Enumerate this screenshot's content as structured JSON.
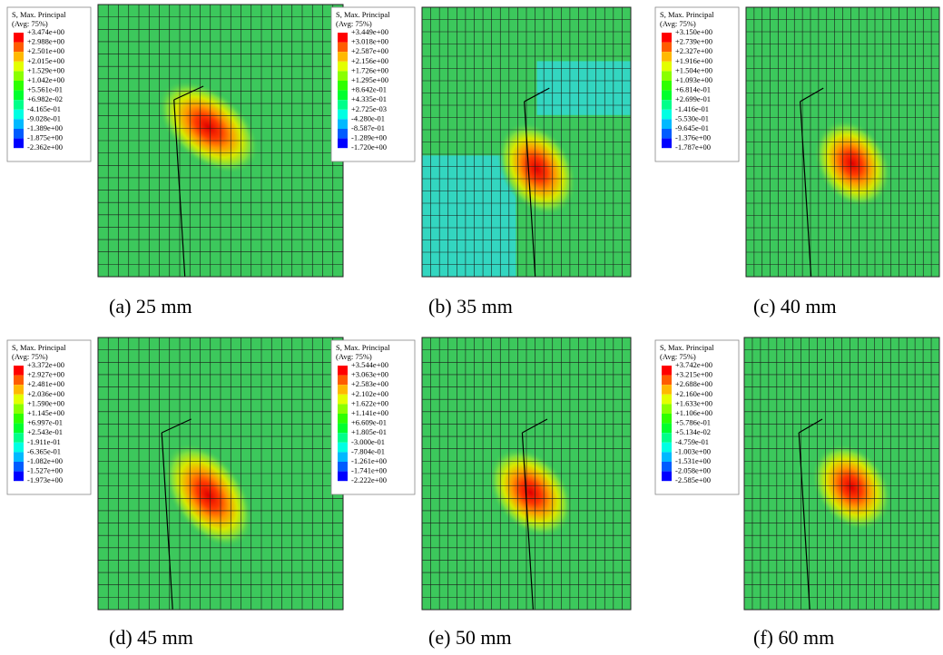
{
  "band_colors": [
    "#ff0000",
    "#ff5c00",
    "#ffb900",
    "#e3ff00",
    "#8aff00",
    "#2eff00",
    "#00ff2e",
    "#00ff8a",
    "#00ffe3",
    "#00b9ff",
    "#005cff",
    "#0000ff"
  ],
  "panels": [
    {
      "legend_title": "S, Max. Principal",
      "legend_subtitle": "(Avg: 75%)",
      "caption": "(a) 25 mm",
      "legend_values": [
        "+3.474e+00",
        "+2.988e+00",
        "+2.501e+00",
        "+2.015e+00",
        "+1.529e+00",
        "+1.042e+00",
        "+5.561e-01",
        "+6.982e-02",
        "-4.165e-01",
        "-9.028e-01",
        "-1.389e+00",
        "-1.875e+00",
        "-2.362e+00"
      ]
    },
    {
      "legend_title": "S, Max. Principal",
      "legend_subtitle": "(Avg: 75%)",
      "caption": "(b) 35 mm",
      "legend_values": [
        "+3.449e+00",
        "+3.018e+00",
        "+2.587e+00",
        "+2.156e+00",
        "+1.726e+00",
        "+1.295e+00",
        "+8.642e-01",
        "+4.335e-01",
        "+2.725e-03",
        "-4.280e-01",
        "-8.587e-01",
        "-1.289e+00",
        "-1.720e+00"
      ]
    },
    {
      "legend_title": "S, Max. Principal",
      "legend_subtitle": "(Avg: 75%)",
      "caption": "(c) 40 mm",
      "legend_values": [
        "+3.150e+00",
        "+2.739e+00",
        "+2.327e+00",
        "+1.916e+00",
        "+1.504e+00",
        "+1.093e+00",
        "+6.814e-01",
        "+2.699e-01",
        "-1.416e-01",
        "-5.530e-01",
        "-9.645e-01",
        "-1.376e+00",
        "-1.787e+00"
      ]
    },
    {
      "legend_title": "S, Max. Principal",
      "legend_subtitle": "(Avg: 75%)",
      "caption": "(d) 45 mm",
      "legend_values": [
        "+3.372e+00",
        "+2.927e+00",
        "+2.481e+00",
        "+2.036e+00",
        "+1.590e+00",
        "+1.145e+00",
        "+6.997e-01",
        "+2.543e-01",
        "-1.911e-01",
        "-6.365e-01",
        "-1.082e+00",
        "-1.527e+00",
        "-1.973e+00"
      ]
    },
    {
      "legend_title": "S, Max. Principal",
      "legend_subtitle": "(Avg: 75%)",
      "caption": "(e) 50 mm",
      "legend_values": [
        "+3.544e+00",
        "+3.063e+00",
        "+2.583e+00",
        "+2.102e+00",
        "+1.622e+00",
        "+1.141e+00",
        "+6.609e-01",
        "+1.805e-01",
        "-3.000e-01",
        "-7.804e-01",
        "-1.261e+00",
        "-1.741e+00",
        "-2.222e+00"
      ]
    },
    {
      "legend_title": "S, Max. Principal",
      "legend_subtitle": "(Avg: 75%)",
      "caption": "(f) 60 mm",
      "legend_values": [
        "+3.742e+00",
        "+3.215e+00",
        "+2.688e+00",
        "+2.160e+00",
        "+1.633e+00",
        "+1.106e+00",
        "+5.786e-01",
        "+5.134e-02",
        "-4.759e-01",
        "-1.003e+00",
        "-1.531e+00",
        "-2.058e+00",
        "-2.585e+00"
      ]
    }
  ]
}
